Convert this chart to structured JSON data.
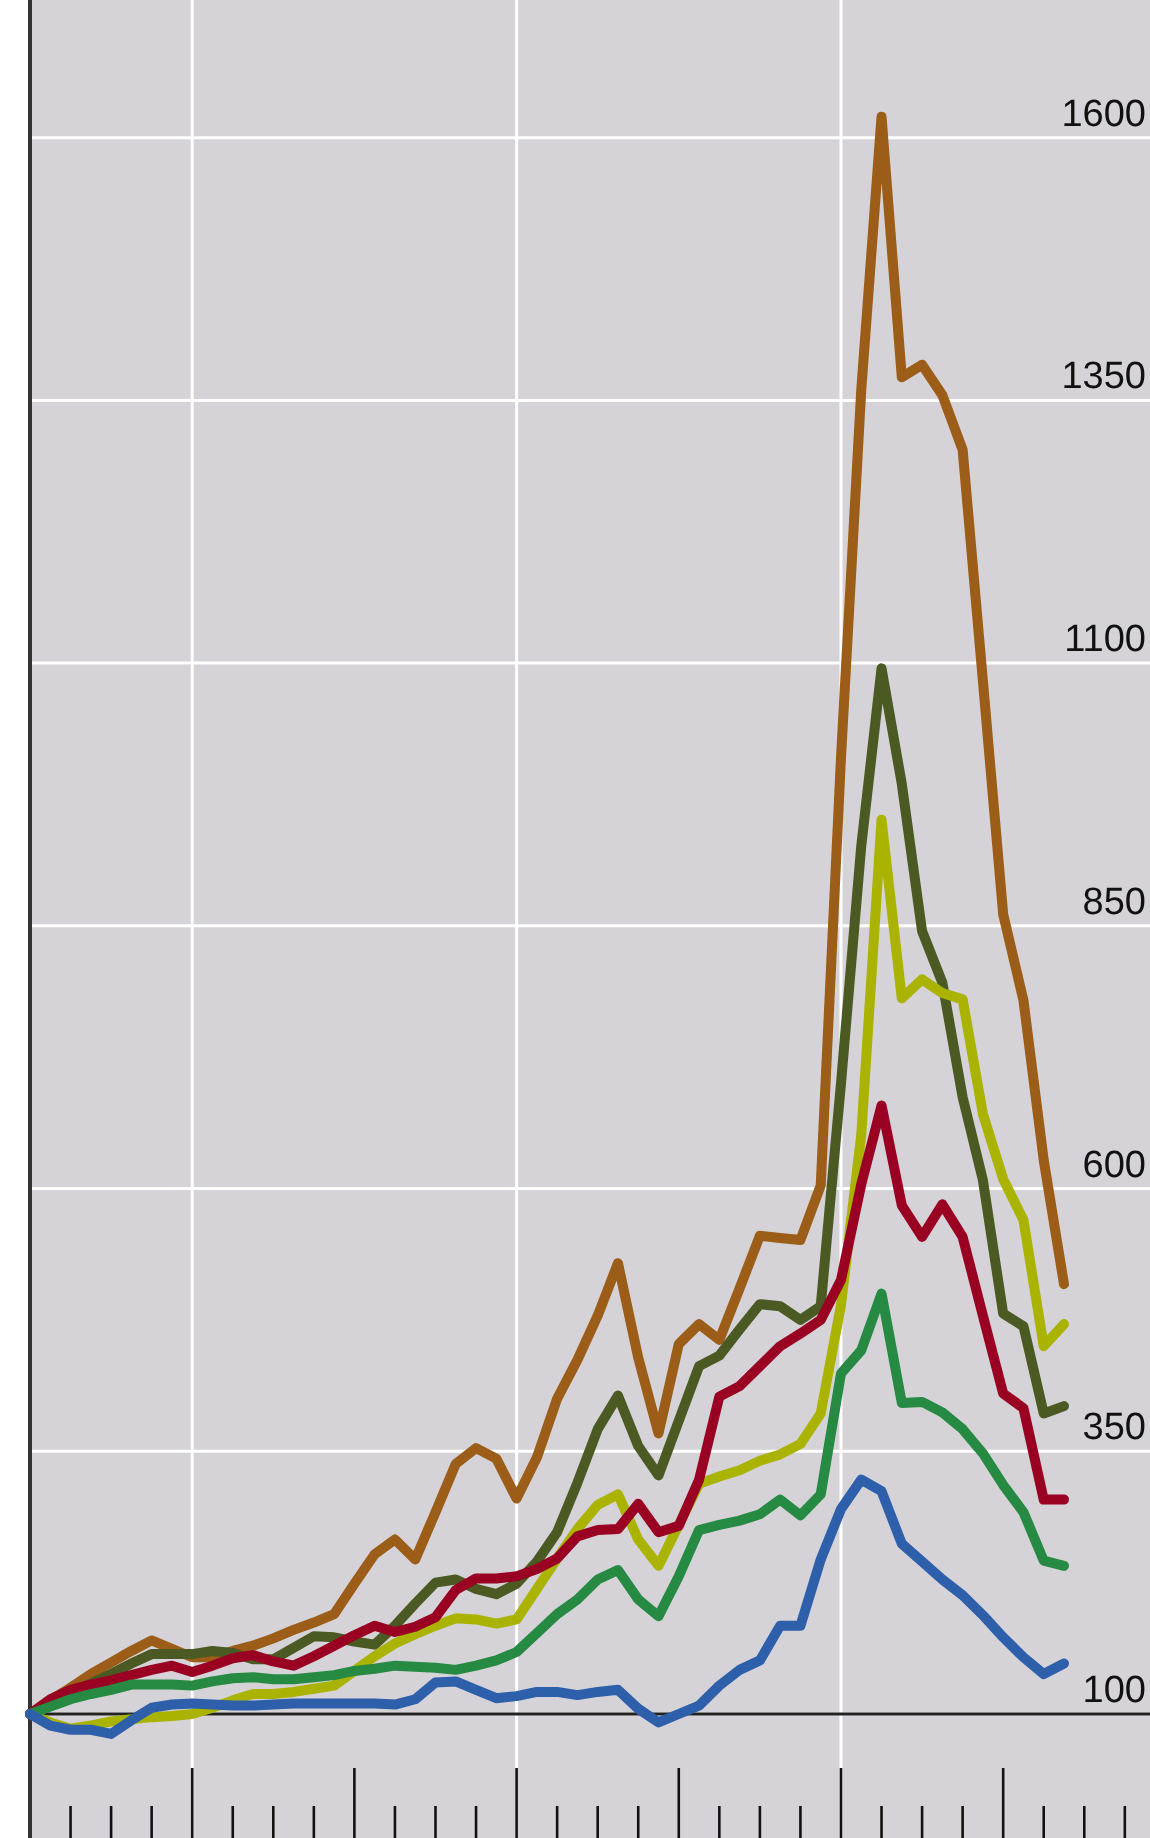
{
  "chart_data": {
    "type": "line",
    "categories": [
      null,
      null,
      null,
      null,
      null,
      null,
      null,
      null,
      null,
      null,
      null,
      null,
      null,
      null,
      null,
      null,
      null,
      null,
      null,
      null,
      null,
      null,
      null,
      null,
      null,
      null,
      null,
      null,
      null,
      null,
      null,
      null,
      null,
      null,
      null,
      null,
      null,
      null,
      null,
      null,
      null,
      null,
      null,
      null,
      null,
      null,
      null,
      null,
      null,
      null,
      null,
      null
    ],
    "ylim": [
      -18,
      1731
    ],
    "yticks": [
      100,
      350,
      600,
      850,
      1100,
      1350,
      1600
    ],
    "grid": true,
    "ref_lines": [
      {
        "axis": "y",
        "value": 100,
        "color": "#222222"
      }
    ],
    "series": [
      {
        "color": "#9b5d17",
        "values": [
          100,
          113,
          125,
          138,
          149,
          160,
          170,
          162,
          154,
          154,
          160,
          165,
          172,
          180,
          187,
          195,
          224,
          252,
          266,
          247,
          292,
          338,
          353,
          343,
          305,
          344,
          400,
          437,
          479,
          529,
          439,
          367,
          452,
          471,
          456,
          505,
          555,
          553,
          551,
          603,
          1010,
          1360,
          1620,
          1372,
          1384,
          1355,
          1303,
          1083,
          861,
          779,
          627,
          509
        ]
      },
      {
        "color": "#4b5a23",
        "values": [
          100,
          110,
          119,
          129,
          138,
          148,
          157,
          157,
          157,
          160,
          158,
          152,
          152,
          163,
          174,
          173,
          169,
          166,
          184,
          205,
          225,
          228,
          219,
          214,
          224,
          245,
          273,
          320,
          371,
          403,
          355,
          327,
          379,
          431,
          441,
          466,
          490,
          488,
          475,
          488,
          700,
          926,
          1095,
          985,
          845,
          796,
          687,
          608,
          481,
          469,
          386,
          393
        ]
      },
      {
        "color": "#a9b300",
        "values": [
          100,
          92,
          86,
          89,
          93,
          95,
          97,
          98,
          100,
          106,
          113,
          119,
          119,
          121,
          124,
          127,
          141,
          155,
          167,
          176,
          184,
          191,
          190,
          186,
          190,
          219,
          248,
          276,
          299,
          309,
          266,
          241,
          280,
          319,
          326,
          332,
          341,
          347,
          357,
          386,
          489,
          651,
          951,
          781,
          799,
          786,
          780,
          671,
          609,
          570,
          450,
          471
        ]
      },
      {
        "color": "#990022",
        "values": [
          100,
          114,
          123,
          128,
          132,
          137,
          142,
          146,
          140,
          146,
          153,
          156,
          150,
          146,
          155,
          165,
          175,
          184,
          178,
          183,
          192,
          218,
          229,
          229,
          231,
          238,
          248,
          269,
          275,
          276,
          300,
          273,
          279,
          323,
          402,
          412,
          431,
          450,
          462,
          475,
          513,
          604,
          679,
          584,
          554,
          585,
          554,
          479,
          405,
          391,
          304,
          304
        ]
      },
      {
        "color": "#268a43",
        "values": [
          100,
          107,
          114,
          119,
          123,
          128,
          128,
          128,
          127,
          131,
          134,
          135,
          133,
          133,
          135,
          137,
          141,
          143,
          146,
          145,
          144,
          142,
          146,
          151,
          159,
          177,
          195,
          209,
          228,
          237,
          209,
          193,
          231,
          275,
          280,
          284,
          290,
          304,
          289,
          309,
          424,
          446,
          500,
          396,
          397,
          387,
          371,
          348,
          318,
          292,
          246,
          241
        ]
      },
      {
        "color": "#2e5fab",
        "values": [
          100,
          89,
          85,
          85,
          81,
          94,
          106,
          109,
          110,
          109,
          108,
          108,
          109,
          110,
          110,
          110,
          110,
          110,
          109,
          114,
          130,
          131,
          123,
          115,
          117,
          121,
          121,
          118,
          121,
          123,
          105,
          92,
          100,
          108,
          127,
          142,
          151,
          184,
          184,
          247,
          295,
          323,
          312,
          262,
          245,
          228,
          213,
          194,
          173,
          154,
          138,
          148
        ]
      }
    ]
  }
}
